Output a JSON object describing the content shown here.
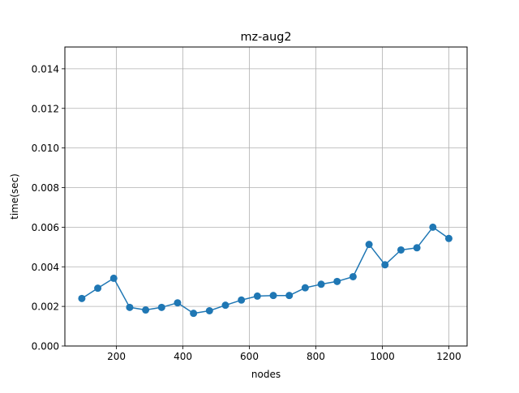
{
  "chart_data": {
    "type": "line",
    "title": "mz-aug2",
    "xlabel": "nodes",
    "ylabel": "time(sec)",
    "xlim": [
      45,
      1255
    ],
    "ylim": [
      0,
      0.0151
    ],
    "xticks": [
      200,
      400,
      600,
      800,
      1000,
      1200
    ],
    "xtick_labels": [
      "200",
      "400",
      "600",
      "800",
      "1000",
      "1200"
    ],
    "yticks": [
      0,
      0.002,
      0.004,
      0.006,
      0.008,
      0.01,
      0.012,
      0.014
    ],
    "ytick_labels": [
      "0.000",
      "0.002",
      "0.004",
      "0.006",
      "0.008",
      "0.010",
      "0.012",
      "0.014"
    ],
    "grid": true,
    "marker": "circle",
    "series": [
      {
        "color": "#1f77b4",
        "x": [
          96,
          144,
          192,
          240,
          288,
          336,
          384,
          432,
          480,
          528,
          576,
          624,
          672,
          720,
          768,
          816,
          864,
          912,
          960,
          1008,
          1056,
          1104,
          1152,
          1200
        ],
        "y": [
          0.0024,
          0.00292,
          0.00342,
          0.00195,
          0.00182,
          0.00195,
          0.00218,
          0.00165,
          0.00178,
          0.00206,
          0.00232,
          0.00252,
          0.00255,
          0.00255,
          0.00294,
          0.00312,
          0.00326,
          0.0035,
          0.00513,
          0.0041,
          0.00485,
          0.00496,
          0.006,
          0.00543
        ]
      }
    ]
  }
}
